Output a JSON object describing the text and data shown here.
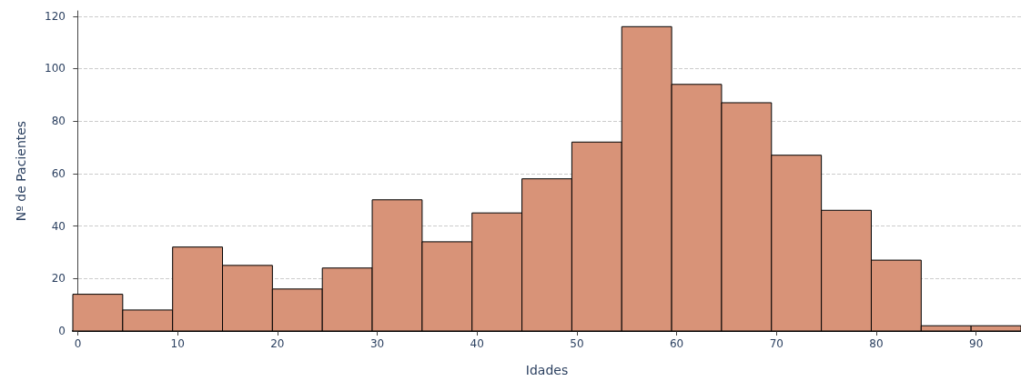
{
  "chart_data": {
    "type": "histogram",
    "xlabel": "Idades",
    "ylabel": "Nº de Pacientes",
    "bins": [
      -0.5,
      4.5,
      9.5,
      14.5,
      19.5,
      24.5,
      29.5,
      34.5,
      39.5,
      44.5,
      49.5,
      54.5,
      59.5,
      64.5,
      69.5,
      74.5,
      79.5,
      84.5,
      89.5,
      94.5
    ],
    "values": [
      14,
      8,
      32,
      25,
      16,
      24,
      50,
      34,
      45,
      58,
      72,
      116,
      94,
      87,
      67,
      46,
      27,
      2,
      2
    ],
    "color": "#d89378",
    "xlim": [
      -0.5,
      94.5
    ],
    "xticks": [
      0,
      10,
      20,
      30,
      40,
      50,
      60,
      70,
      80,
      90
    ],
    "ylim": [
      0,
      122
    ],
    "yticks": [
      0,
      20,
      40,
      60,
      80,
      100,
      120
    ],
    "grid": "y"
  }
}
